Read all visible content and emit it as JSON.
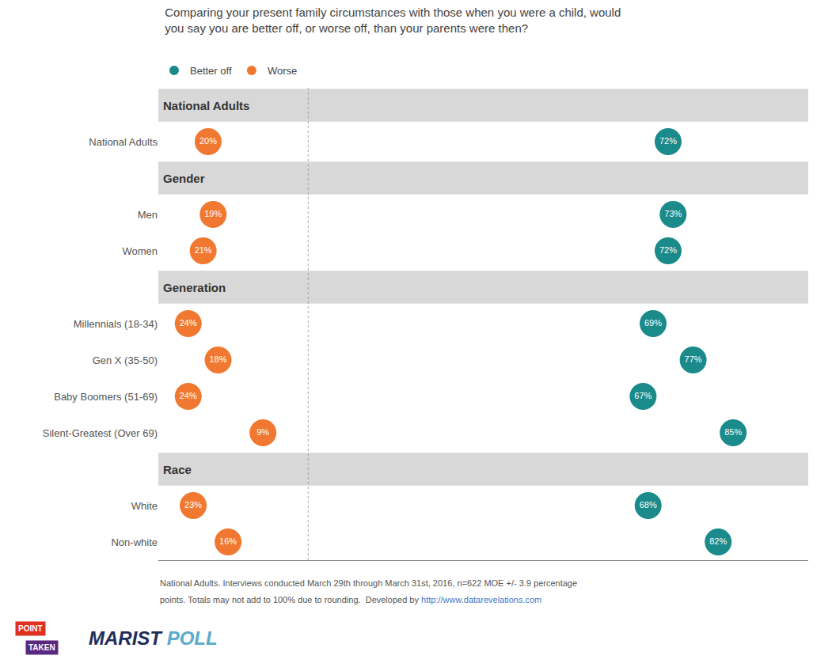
{
  "chart_data": [
    {
      "type": "dot",
      "title": "Comparing your present family circumstances with those when you were a child, would\nyou say you are better off, or worse off, than your parents were then?",
      "categories": [
        "National Adults",
        "Men",
        "Women",
        "Millennials (18-34)",
        "Gen X (35-50)",
        "Baby Boomers (51-69)",
        "Silent-Greatest (Over 69)",
        "White",
        "Non-white"
      ],
      "groups": [
        {
          "name": "National Adults",
          "categories": [
            "National Adults"
          ]
        },
        {
          "name": "Gender",
          "categories": [
            "Men",
            "Women"
          ]
        },
        {
          "name": "Generation",
          "categories": [
            "Millennials (18-34)",
            "Gen X (35-50)",
            "Baby Boomers (51-69)",
            "Silent-Greatest (Over 69)"
          ]
        },
        {
          "name": "Race",
          "categories": [
            "White",
            "Non-white"
          ]
        }
      ],
      "series": [
        {
          "name": "Worse",
          "color": "#f07830",
          "values": [
            20,
            19,
            21,
            24,
            18,
            24,
            9,
            23,
            16
          ],
          "value_labels": [
            "20%",
            "19%",
            "21%",
            "24%",
            "18%",
            "24%",
            "9%",
            "23%",
            "16%"
          ]
        }
      ],
      "xlim": [
        30,
        0
      ],
      "grid": false,
      "legend": "top left",
      "data_labels": true,
      "tick_labels": "y",
      "annotations": [
        {
          "text": "National Adults. Interviews conducted March 29th through March 31st, 2016, n=622 MOE +/- 3.9 percentage"
        },
        {
          "text": "points. Totals may not add to 100% due to rounding.  Developed by "
        },
        {
          "text": "http://www.datarevelations.com",
          "color": "#4477cc"
        },
        {
          "text": "POINT",
          "color": "#e03020"
        },
        {
          "text": "TAKEN",
          "color": "#5a2882"
        },
        {
          "text": "MARIST",
          "color": "#1e2d5a"
        },
        {
          "text": "POLL",
          "color": "#5aabcd"
        }
      ]
    },
    {
      "type": "dot",
      "categories": [
        "National Adults",
        "Men",
        "Women",
        "Millennials (18-34)",
        "Gen X (35-50)",
        "Baby Boomers (51-69)",
        "Silent-Greatest (Over 69)",
        "White",
        "Non-white"
      ],
      "series": [
        {
          "name": "Better off",
          "color": "#1a8a8a",
          "values": [
            72,
            73,
            72,
            69,
            77,
            67,
            85,
            68,
            82
          ],
          "value_labels": [
            "72%",
            "73%",
            "72%",
            "69%",
            "77%",
            "67%",
            "85%",
            "68%",
            "82%"
          ]
        }
      ],
      "xlim": [
        0,
        100
      ],
      "grid": false,
      "legend": "top left",
      "data_labels": true,
      "tick_labels": false
    }
  ]
}
